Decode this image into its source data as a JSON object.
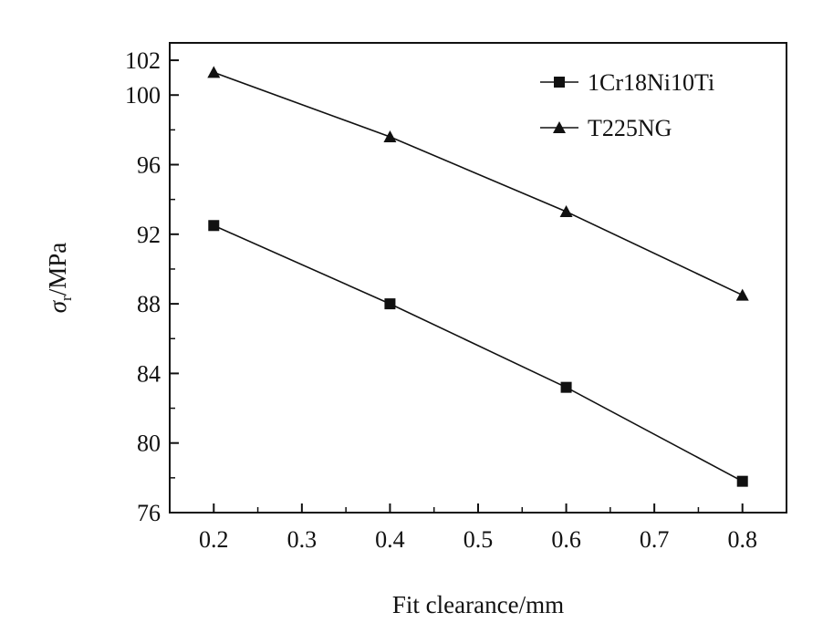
{
  "chart_data": {
    "type": "line",
    "xlabel": "Fit clearance/mm",
    "ylabel": "σr/MPa",
    "ylabel_symbol": "σ",
    "ylabel_subscript": "r",
    "ylabel_unit": "/MPa",
    "xlim": [
      0.15,
      0.85
    ],
    "ylim": [
      76,
      103
    ],
    "x_ticks": [
      0.2,
      0.3,
      0.4,
      0.5,
      0.6,
      0.7,
      0.8
    ],
    "x_tick_labels": [
      "0.2",
      "0.3",
      "0.4",
      "0.5",
      "0.6",
      "0.7",
      "0.8"
    ],
    "y_ticks": [
      76,
      80,
      84,
      88,
      92,
      96,
      100,
      102
    ],
    "y_tick_labels": [
      "76",
      "80",
      "84",
      "88",
      "92",
      "96",
      "100",
      "102"
    ],
    "grid": false,
    "legend_position": "top-right",
    "series": [
      {
        "name": "1Cr18Ni10Ti",
        "marker": "square",
        "color": "#111111",
        "x": [
          0.2,
          0.4,
          0.6,
          0.8
        ],
        "y": [
          92.5,
          88.0,
          83.2,
          77.8
        ]
      },
      {
        "name": "T225NG",
        "marker": "triangle",
        "color": "#111111",
        "x": [
          0.2,
          0.4,
          0.6,
          0.8
        ],
        "y": [
          101.3,
          97.6,
          93.3,
          88.5
        ]
      }
    ]
  }
}
